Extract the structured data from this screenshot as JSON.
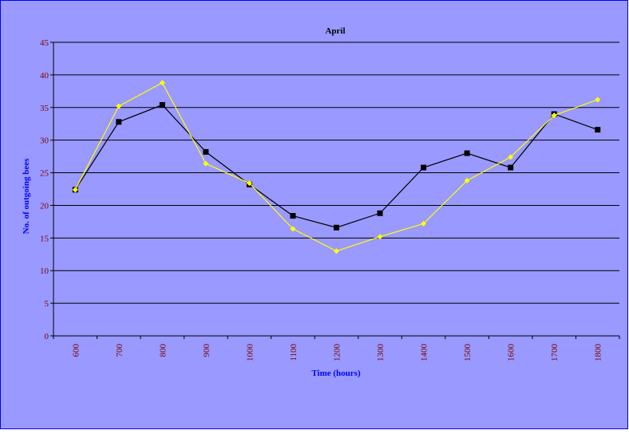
{
  "chart_data": {
    "type": "line",
    "title": "April",
    "xlabel": "Time (hours)",
    "ylabel": "No. of outgoing bees",
    "categories": [
      "600",
      "700",
      "800",
      "900",
      "1000",
      "1100",
      "1200",
      "1300",
      "1400",
      "1500",
      "1600",
      "1700",
      "1800"
    ],
    "ylim": [
      0,
      45
    ],
    "yticks": [
      0,
      5,
      10,
      15,
      20,
      25,
      30,
      35,
      40,
      45
    ],
    "grid": true,
    "legend": "none",
    "series": [
      {
        "color": "#000000",
        "marker": "square",
        "values": [
          22.4,
          32.8,
          35.4,
          28.2,
          23.2,
          18.4,
          16.6,
          18.8,
          25.8,
          28.0,
          25.8,
          34.0,
          31.6
        ]
      },
      {
        "color": "#ffff00",
        "marker": "diamond",
        "values": [
          22.4,
          35.2,
          38.8,
          26.4,
          23.4,
          16.4,
          13.0,
          15.2,
          17.2,
          23.8,
          27.4,
          33.8,
          36.2
        ]
      }
    ],
    "colors": {
      "background": "#9999ff",
      "plot_area": "#9999ff",
      "gridline": "#000000",
      "tick_label": "#800000",
      "axis_title": "#0000ff",
      "title": "#000000",
      "border": "#0000ff"
    }
  }
}
